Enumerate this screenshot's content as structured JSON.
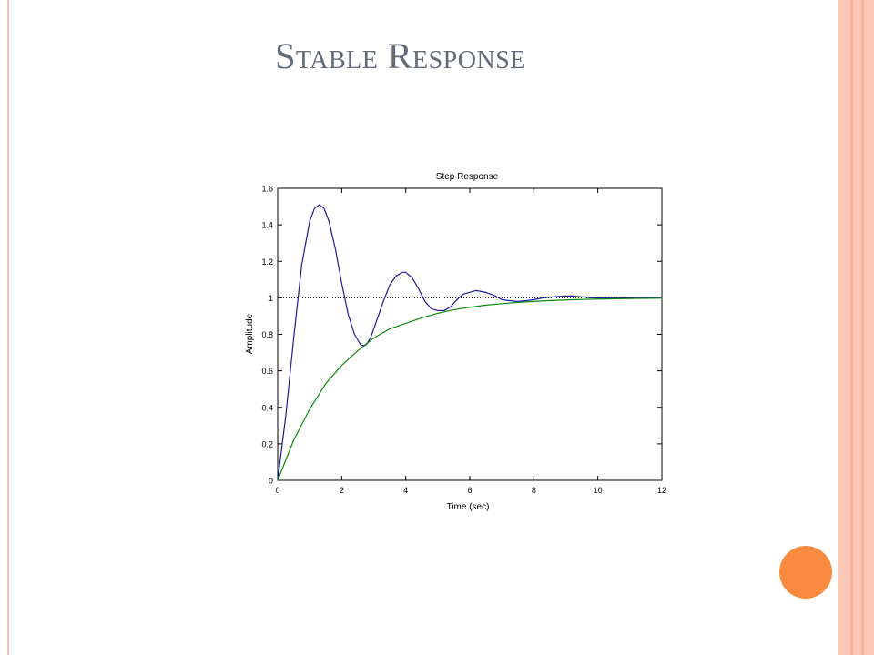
{
  "slide": {
    "title": "Stable Response",
    "colors": {
      "title": "#636b76",
      "accent_dot": "#fa8a3e",
      "band_outer": "#f9c9b6",
      "band_inner": "#f6b39a",
      "left_rule": "#f4c3b3"
    }
  },
  "chart_data": {
    "type": "line",
    "title": "Step Response",
    "xlabel": "Time (sec)",
    "ylabel": "Amplitude",
    "xlim": [
      0,
      12
    ],
    "ylim": [
      0,
      1.6
    ],
    "xticks": [
      0,
      2,
      4,
      6,
      8,
      10,
      12
    ],
    "yticks": [
      0,
      0.2,
      0.4,
      0.6,
      0.8,
      1,
      1.2,
      1.4,
      1.6
    ],
    "xtick_labels": [
      "0",
      "2",
      "4",
      "6",
      "8",
      "10",
      "12"
    ],
    "ytick_labels": [
      "0",
      "0.2",
      "0.4",
      "0.6",
      "0.8",
      "1",
      "1.2",
      "1.4",
      "1.6"
    ],
    "grid": false,
    "reference_line": {
      "y": 1.0,
      "style": "dotted"
    },
    "series": [
      {
        "color": "#1a1aa0",
        "x": [
          0,
          0.25,
          0.5,
          0.75,
          1.0,
          1.15,
          1.3,
          1.45,
          1.6,
          1.8,
          2.0,
          2.2,
          2.4,
          2.6,
          2.75,
          2.9,
          3.1,
          3.3,
          3.5,
          3.7,
          3.9,
          4.0,
          4.2,
          4.4,
          4.6,
          4.8,
          5.0,
          5.2,
          5.4,
          5.6,
          5.8,
          6.0,
          6.2,
          6.5,
          6.8,
          7.0,
          7.2,
          7.5,
          7.8,
          8.0,
          8.3,
          8.6,
          9.0,
          9.2,
          9.5,
          9.8,
          10.2,
          10.6,
          11.0,
          11.5,
          12.0
        ],
        "y": [
          0,
          0.35,
          0.78,
          1.18,
          1.42,
          1.49,
          1.51,
          1.49,
          1.42,
          1.27,
          1.08,
          0.91,
          0.8,
          0.74,
          0.74,
          0.78,
          0.88,
          0.98,
          1.07,
          1.12,
          1.14,
          1.14,
          1.11,
          1.05,
          0.98,
          0.94,
          0.93,
          0.93,
          0.95,
          0.99,
          1.02,
          1.03,
          1.04,
          1.03,
          1.01,
          0.99,
          0.985,
          0.98,
          0.985,
          0.99,
          1.0,
          1.005,
          1.01,
          1.01,
          1.005,
          1.0,
          0.998,
          0.998,
          1.0,
          1.0,
          1.0
        ]
      },
      {
        "color": "#0a8a0a",
        "x": [
          0,
          0.5,
          1.0,
          1.5,
          2.0,
          2.5,
          3.0,
          3.5,
          4.0,
          4.5,
          5.0,
          5.5,
          6.0,
          6.5,
          7.0,
          7.5,
          8.0,
          8.5,
          9.0,
          9.5,
          10.0,
          11.0,
          12.0
        ],
        "y": [
          0,
          0.22,
          0.39,
          0.53,
          0.63,
          0.71,
          0.78,
          0.83,
          0.86,
          0.89,
          0.915,
          0.935,
          0.948,
          0.96,
          0.968,
          0.975,
          0.98,
          0.985,
          0.988,
          0.991,
          0.993,
          0.996,
          0.998
        ]
      }
    ]
  }
}
